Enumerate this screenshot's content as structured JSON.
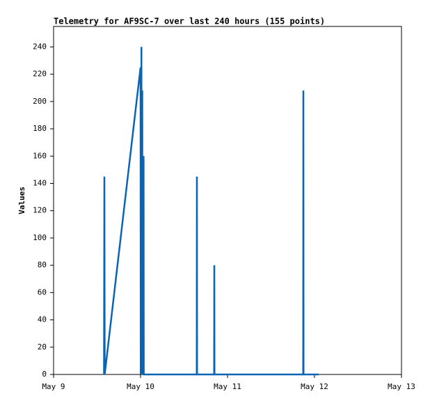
{
  "chart_data": {
    "type": "line",
    "title": "Telemetry for AF9SC-7 over last 240 hours (155 points)",
    "y_label": "Values",
    "x": [
      0.58,
      0.584,
      0.588,
      1.0,
      1.002,
      1.01,
      1.012,
      1.02,
      1.022,
      1.035,
      1.037,
      1.2,
      1.646,
      1.648,
      1.65,
      1.846,
      1.848,
      1.85,
      2.5,
      2.87,
      2.872,
      2.874,
      3.05
    ],
    "series": [
      {
        "name": "Values",
        "color": "#0a64b4",
        "values": [
          0,
          145,
          0,
          225,
          0,
          240,
          0,
          208,
          0,
          160,
          0,
          0,
          0,
          145,
          0,
          0,
          80,
          0,
          0,
          0,
          208,
          0,
          0
        ]
      }
    ],
    "xlim": [
      0,
      4
    ],
    "xticks": [
      {
        "value": 0,
        "label": "May 9"
      },
      {
        "value": 1,
        "label": "May 10"
      },
      {
        "value": 2,
        "label": "May 11"
      },
      {
        "value": 3,
        "label": "May 12"
      },
      {
        "value": 4,
        "label": "May 13"
      }
    ],
    "ylim": [
      0,
      255
    ],
    "yticks": [
      0,
      20,
      40,
      60,
      80,
      100,
      120,
      140,
      160,
      180,
      200,
      220,
      240
    ],
    "grid": false
  }
}
